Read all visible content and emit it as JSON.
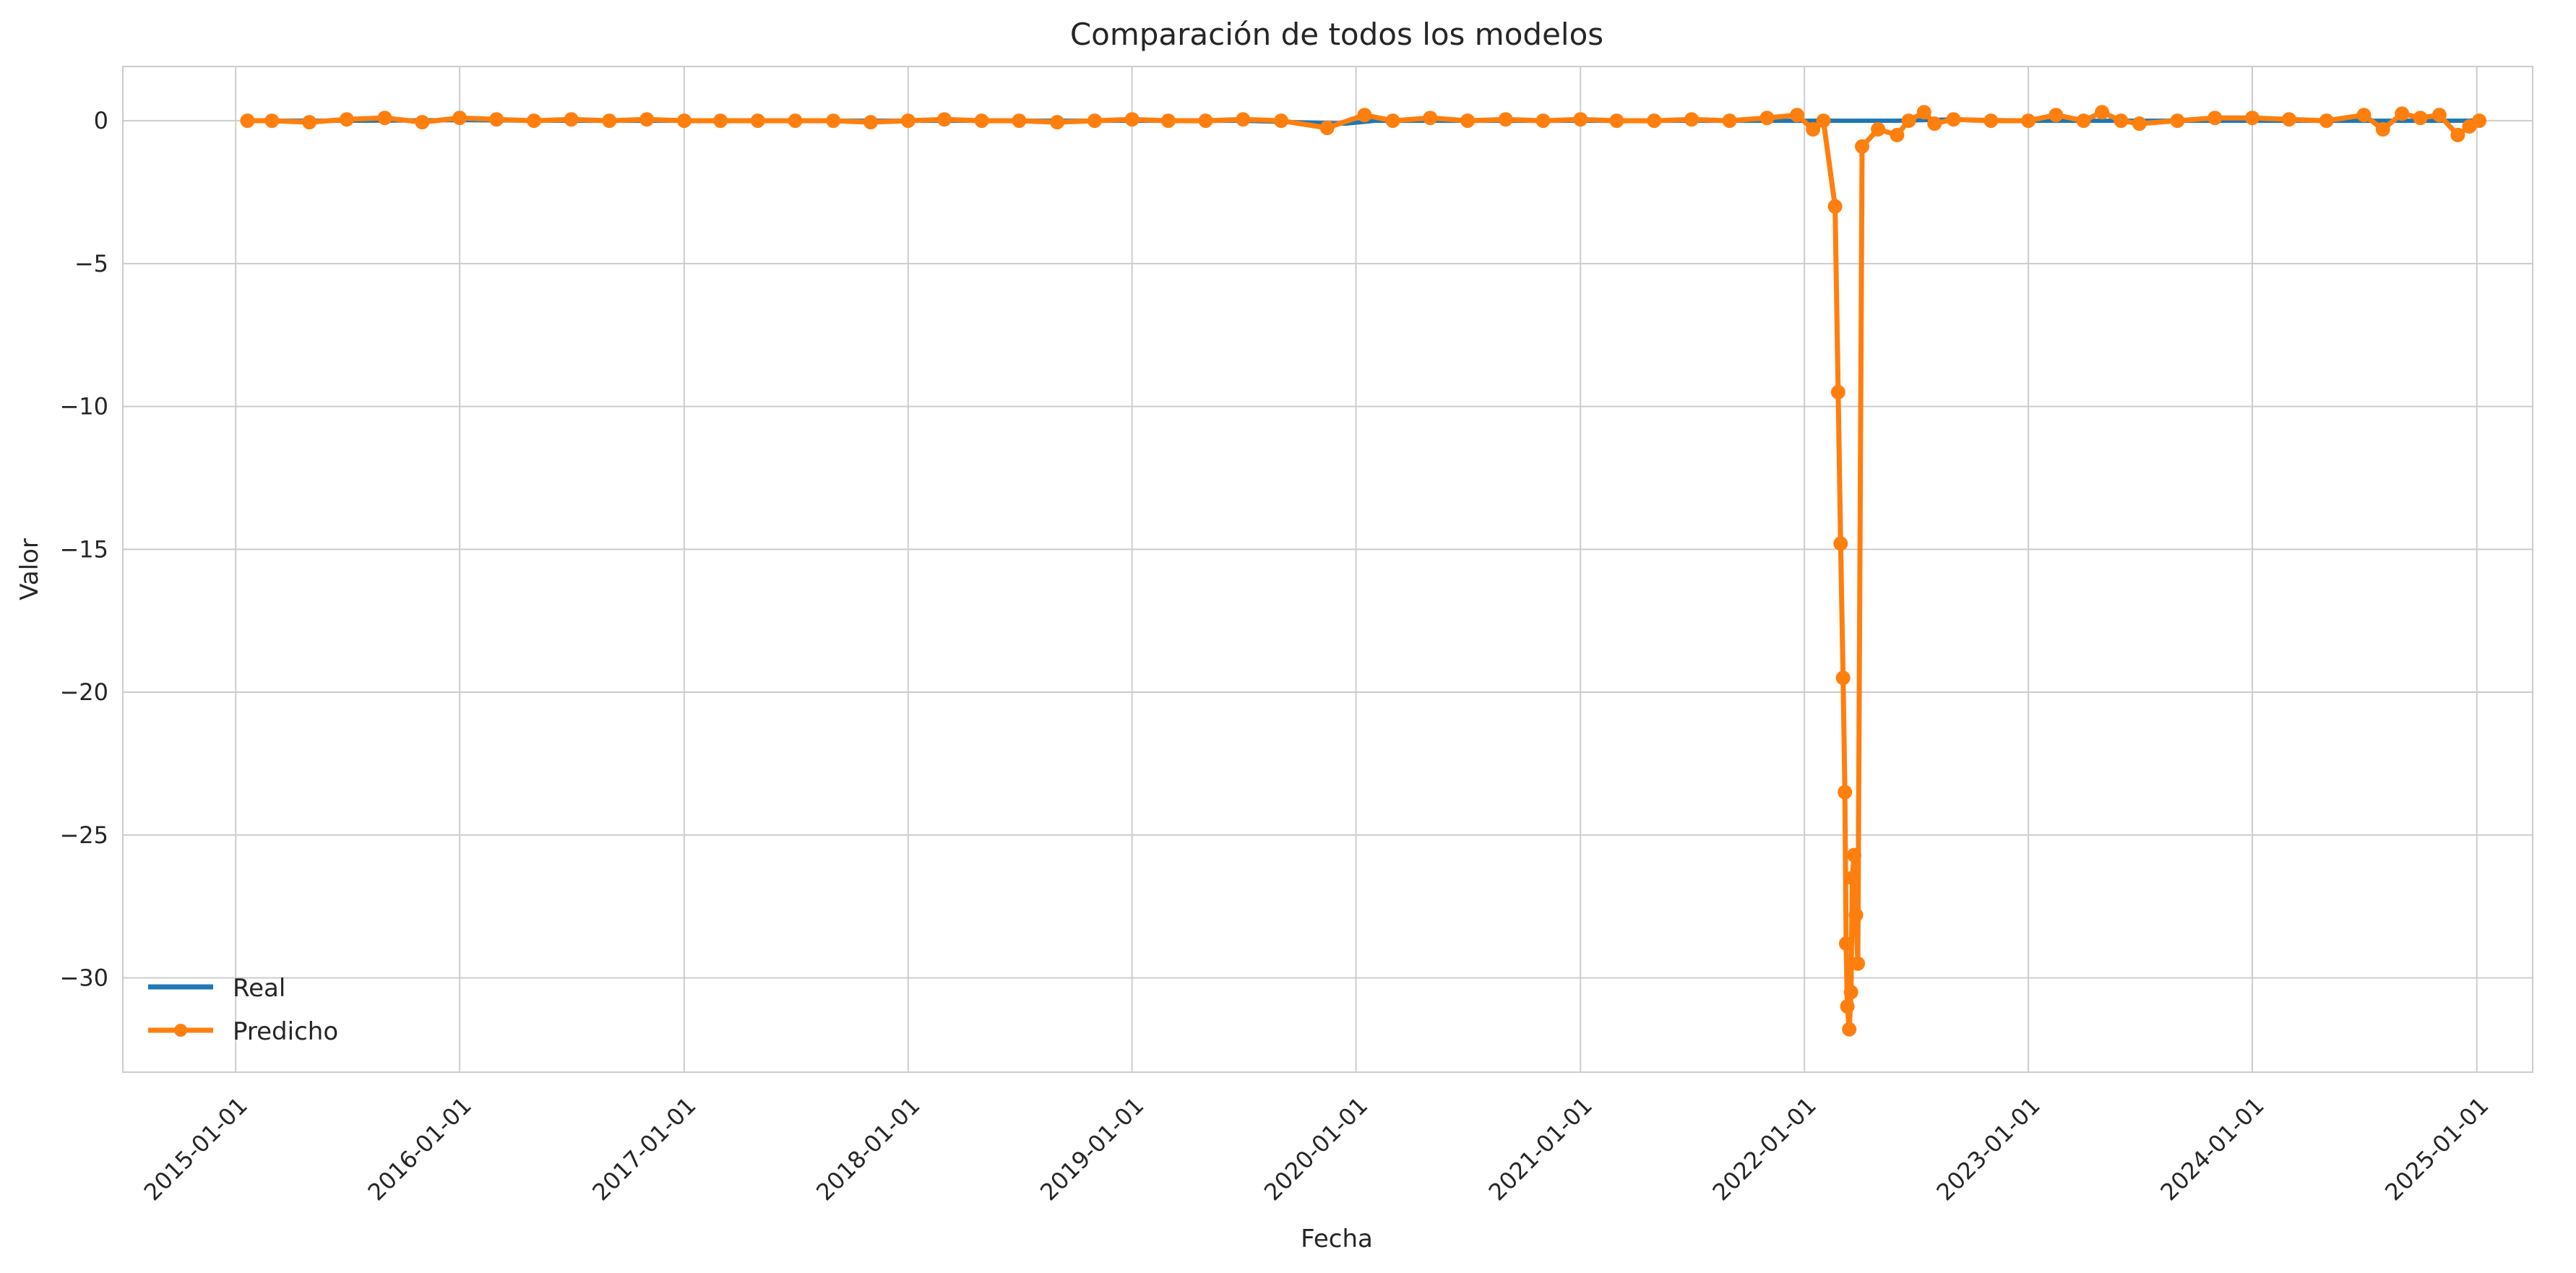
{
  "chart_data": {
    "type": "line",
    "title": "Comparación de todos los modelos",
    "xlabel": "Fecha",
    "ylabel": "Valor",
    "x_range": [
      "2014-07-01",
      "2025-04-02"
    ],
    "ylim": [
      -33.3,
      1.9
    ],
    "y_ticks": [
      0,
      -5,
      -10,
      -15,
      -20,
      -25,
      -30
    ],
    "y_tick_labels": [
      "0",
      "−5",
      "−10",
      "−15",
      "−20",
      "−25",
      "−30"
    ],
    "x_ticks": [
      "2015-01-01",
      "2016-01-01",
      "2017-01-01",
      "2018-01-01",
      "2019-01-01",
      "2020-01-01",
      "2021-01-01",
      "2022-01-01",
      "2023-01-01",
      "2024-01-01",
      "2025-01-01"
    ],
    "grid": true,
    "legend": {
      "placement": "lower-left",
      "entries": [
        "Real",
        "Predicho"
      ]
    },
    "colors": {
      "Real": "#1f77b4",
      "Predicho": "#ff7f0e"
    },
    "series": [
      {
        "name": "Real",
        "style": "line",
        "x": [
          "2015-01-20",
          "2015-07-01",
          "2016-01-01",
          "2016-07-01",
          "2017-01-01",
          "2017-07-01",
          "2018-01-01",
          "2018-07-01",
          "2019-01-01",
          "2019-07-01",
          "2019-12-15",
          "2020-02-01",
          "2020-07-01",
          "2021-01-01",
          "2021-07-01",
          "2021-12-15",
          "2022-06-01",
          "2022-09-01",
          "2023-01-01",
          "2023-07-01",
          "2024-01-01",
          "2024-07-01",
          "2025-01-05"
        ],
        "y": [
          0.0,
          0.0,
          0.02,
          0.0,
          0.0,
          0.0,
          0.0,
          0.0,
          0.0,
          0.0,
          -0.1,
          0.0,
          0.0,
          0.0,
          0.0,
          0.0,
          0.0,
          0.05,
          0.0,
          0.0,
          0.0,
          0.0,
          0.0
        ]
      },
      {
        "name": "Predicho",
        "style": "line-markers",
        "x": [
          "2015-01-20",
          "2015-03-01",
          "2015-05-01",
          "2015-07-01",
          "2015-09-01",
          "2015-11-01",
          "2016-01-01",
          "2016-03-01",
          "2016-05-01",
          "2016-07-01",
          "2016-09-01",
          "2016-11-01",
          "2017-01-01",
          "2017-03-01",
          "2017-05-01",
          "2017-07-01",
          "2017-09-01",
          "2017-11-01",
          "2018-01-01",
          "2018-03-01",
          "2018-05-01",
          "2018-07-01",
          "2018-09-01",
          "2018-11-01",
          "2019-01-01",
          "2019-03-01",
          "2019-05-01",
          "2019-07-01",
          "2019-09-01",
          "2019-11-15",
          "2020-01-15",
          "2020-03-01",
          "2020-05-01",
          "2020-07-01",
          "2020-09-01",
          "2020-11-01",
          "2021-01-01",
          "2021-03-01",
          "2021-05-01",
          "2021-07-01",
          "2021-09-01",
          "2021-11-01",
          "2021-12-20",
          "2022-01-15",
          "2022-02-01",
          "2022-02-20",
          "2022-02-25",
          "2022-03-01",
          "2022-03-05",
          "2022-03-08",
          "2022-03-10",
          "2022-03-12",
          "2022-03-15",
          "2022-03-18",
          "2022-03-20",
          "2022-03-23",
          "2022-03-26",
          "2022-03-29",
          "2022-04-05",
          "2022-05-01",
          "2022-06-01",
          "2022-06-20",
          "2022-07-15",
          "2022-08-01",
          "2022-09-01",
          "2022-11-01",
          "2023-01-01",
          "2023-02-15",
          "2023-04-01",
          "2023-05-01",
          "2023-06-01",
          "2023-07-01",
          "2023-09-01",
          "2023-11-01",
          "2024-01-01",
          "2024-03-01",
          "2024-05-01",
          "2024-07-01",
          "2024-08-01",
          "2024-09-01",
          "2024-10-01",
          "2024-11-01",
          "2024-12-01",
          "2024-12-20",
          "2025-01-05"
        ],
        "y": [
          0.0,
          0.0,
          -0.05,
          0.05,
          0.1,
          -0.05,
          0.1,
          0.05,
          0.0,
          0.05,
          0.0,
          0.05,
          0.0,
          0.0,
          0.0,
          0.0,
          0.0,
          -0.05,
          0.0,
          0.05,
          0.0,
          0.0,
          -0.05,
          0.0,
          0.05,
          0.0,
          0.0,
          0.05,
          0.0,
          -0.25,
          0.2,
          0.0,
          0.1,
          0.0,
          0.05,
          0.0,
          0.05,
          0.0,
          0.0,
          0.05,
          0.0,
          0.1,
          0.2,
          -0.3,
          0.0,
          -3.0,
          -9.5,
          -14.8,
          -19.5,
          -23.5,
          -28.8,
          -31.0,
          -31.8,
          -30.5,
          -26.5,
          -25.7,
          -27.8,
          -29.5,
          -0.9,
          -0.3,
          -0.5,
          0.0,
          0.3,
          -0.1,
          0.05,
          0.0,
          0.0,
          0.2,
          0.0,
          0.3,
          0.0,
          -0.1,
          0.0,
          0.1,
          0.1,
          0.05,
          0.0,
          0.2,
          -0.3,
          0.25,
          0.1,
          0.2,
          -0.5,
          -0.2,
          0.0
        ]
      }
    ]
  }
}
